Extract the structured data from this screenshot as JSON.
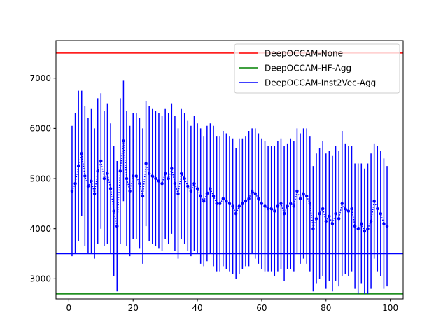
{
  "chart_data": {
    "type": "line",
    "title": "",
    "xlabel": "",
    "ylabel": "",
    "xlim": [
      -4,
      104
    ],
    "ylim": [
      2600,
      7750
    ],
    "x_ticks": [
      0,
      20,
      40,
      60,
      80,
      100
    ],
    "y_ticks": [
      3000,
      4000,
      5000,
      6000,
      7000
    ],
    "grid": false,
    "legend": {
      "placement": "top-right",
      "entries": [
        {
          "label": "DeepOCCAM-None",
          "color": "#ff0000"
        },
        {
          "label": "DeepOCCAM-HF-Agg",
          "color": "#008000"
        },
        {
          "label": "DeepOCCAM-Inst2Vec-Agg",
          "color": "#0000ff"
        }
      ]
    },
    "hlines": [
      {
        "name": "DeepOCCAM-None",
        "y": 7500,
        "color": "#ff0000"
      },
      {
        "name": "DeepOCCAM-HF-Agg",
        "y": 2700,
        "color": "#008000"
      },
      {
        "name": "DeepOCCAM-Inst2Vec-Agg",
        "y": 3500,
        "color": "#0000ff"
      }
    ],
    "series": [
      {
        "name": "DeepOCCAM-Inst2Vec-Agg",
        "color": "#0000ff",
        "x": [
          1,
          2,
          3,
          4,
          5,
          6,
          7,
          8,
          9,
          10,
          11,
          12,
          13,
          14,
          15,
          16,
          17,
          18,
          19,
          20,
          21,
          22,
          23,
          24,
          25,
          26,
          27,
          28,
          29,
          30,
          31,
          32,
          33,
          34,
          35,
          36,
          37,
          38,
          39,
          40,
          41,
          42,
          43,
          44,
          45,
          46,
          47,
          48,
          49,
          50,
          51,
          52,
          53,
          54,
          55,
          56,
          57,
          58,
          59,
          60,
          61,
          62,
          63,
          64,
          65,
          66,
          67,
          68,
          69,
          70,
          71,
          72,
          73,
          74,
          75,
          76,
          77,
          78,
          79,
          80,
          81,
          82,
          83,
          84,
          85,
          86,
          87,
          88,
          89,
          90,
          91,
          92,
          93,
          94,
          95,
          96,
          97,
          98,
          99
        ],
        "y": [
          4750,
          4900,
          5250,
          5500,
          5050,
          4850,
          4950,
          4700,
          5150,
          5350,
          5000,
          5100,
          4800,
          4350,
          4050,
          5150,
          5750,
          5000,
          4750,
          5050,
          5050,
          4900,
          4650,
          5300,
          5100,
          5050,
          5000,
          4950,
          4900,
          5100,
          5000,
          5200,
          4900,
          4700,
          5100,
          5000,
          4850,
          4750,
          4900,
          4800,
          4650,
          4550,
          4700,
          4800,
          4650,
          4500,
          4500,
          4600,
          4550,
          4500,
          4450,
          4300,
          4450,
          4500,
          4550,
          4600,
          4750,
          4700,
          4600,
          4500,
          4450,
          4400,
          4400,
          4350,
          4450,
          4500,
          4300,
          4450,
          4500,
          4450,
          4750,
          4600,
          4700,
          4650,
          4500,
          4000,
          4200,
          4300,
          4400,
          4150,
          4250,
          4100,
          4300,
          4200,
          4500,
          4400,
          4350,
          4400,
          4050,
          4000,
          4100,
          3950,
          4000,
          4150,
          4550,
          4400,
          4300,
          4100,
          4050
        ],
        "err": [
          1300,
          1400,
          1500,
          1250,
          1400,
          1350,
          1450,
          1300,
          1450,
          1350,
          1350,
          1400,
          1300,
          1300,
          1300,
          1450,
          1200,
          1350,
          1300,
          1250,
          1250,
          1300,
          1350,
          1250,
          1350,
          1350,
          1350,
          1350,
          1350,
          1300,
          1300,
          1300,
          1350,
          1300,
          1300,
          1300,
          1300,
          1300,
          1350,
          1300,
          1350,
          1300,
          1350,
          1300,
          1400,
          1350,
          1350,
          1350,
          1350,
          1350,
          1350,
          1300,
          1350,
          1300,
          1300,
          1350,
          1250,
          1300,
          1300,
          1300,
          1300,
          1250,
          1250,
          1300,
          1300,
          1300,
          1350,
          1250,
          1300,
          1300,
          1250,
          1300,
          1300,
          1350,
          1350,
          1250,
          1300,
          1300,
          1350,
          1350,
          1300,
          1350,
          1350,
          1350,
          1450,
          1300,
          1300,
          1250,
          1250,
          1300,
          1200,
          1250,
          1300,
          1350,
          1150,
          1250,
          1250,
          1300,
          1200
        ]
      }
    ]
  }
}
